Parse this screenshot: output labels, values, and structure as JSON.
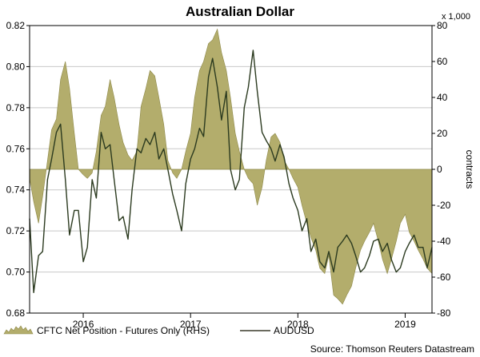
{
  "chart_data": {
    "type": "line",
    "title": "Australian Dollar",
    "source": "Source: Thomson Reuters Datastream",
    "x_ticks": [
      "2016",
      "2017",
      "2018",
      "2019"
    ],
    "x_range": [
      "2015-07",
      "2019-04"
    ],
    "left_axis": {
      "ylim": [
        0.68,
        0.82
      ],
      "ticks": [
        "0.82",
        "0.80",
        "0.78",
        "0.76",
        "0.74",
        "0.72",
        "0.70",
        "0.68"
      ]
    },
    "right_axis": {
      "unit_label": "x 1,000",
      "label": "contracts",
      "ylim": [
        -80,
        80
      ],
      "ticks": [
        "80",
        "60",
        "40",
        "20",
        "0",
        "-20",
        "-40",
        "-60",
        "-80"
      ]
    },
    "colors": {
      "area_fill": "#b3ad6c",
      "area_edge": "#8c8746",
      "line": "#2b3a1f",
      "grid": "#c8c8c8",
      "legend_line": "#3a3a2a"
    },
    "series": [
      {
        "name": "CFTC Net Position - Futures Only (RHS)",
        "type": "area",
        "axis": "right",
        "x": [
          "2015-07",
          "2015-07-15",
          "2015-08",
          "2015-08-15",
          "2015-09",
          "2015-09-15",
          "2015-10",
          "2015-10-15",
          "2015-11",
          "2015-11-15",
          "2015-12",
          "2015-12-15",
          "2016-01",
          "2016-01-15",
          "2016-02",
          "2016-02-15",
          "2016-03",
          "2016-03-15",
          "2016-04",
          "2016-04-15",
          "2016-05",
          "2016-05-15",
          "2016-06",
          "2016-06-15",
          "2016-07",
          "2016-07-15",
          "2016-08",
          "2016-08-15",
          "2016-09",
          "2016-09-15",
          "2016-10",
          "2016-10-15",
          "2016-11",
          "2016-11-15",
          "2016-12",
          "2016-12-15",
          "2017-01",
          "2017-01-15",
          "2017-02",
          "2017-02-15",
          "2017-03",
          "2017-03-15",
          "2017-04",
          "2017-04-15",
          "2017-05",
          "2017-05-15",
          "2017-06",
          "2017-06-15",
          "2017-07",
          "2017-07-15",
          "2017-08",
          "2017-08-15",
          "2017-09",
          "2017-09-15",
          "2017-10",
          "2017-10-15",
          "2017-11",
          "2017-11-15",
          "2017-12",
          "2017-12-15",
          "2018-01",
          "2018-01-15",
          "2018-02",
          "2018-02-15",
          "2018-03",
          "2018-03-15",
          "2018-04",
          "2018-04-15",
          "2018-05",
          "2018-05-15",
          "2018-06",
          "2018-06-15",
          "2018-07",
          "2018-07-15",
          "2018-08",
          "2018-08-15",
          "2018-09",
          "2018-09-15",
          "2018-10",
          "2018-10-15",
          "2018-11",
          "2018-11-15",
          "2018-12",
          "2018-12-15",
          "2019-01",
          "2019-01-15",
          "2019-02",
          "2019-02-15",
          "2019-03",
          "2019-03-15",
          "2019-04"
        ],
        "values": [
          -5,
          -18,
          -30,
          -15,
          5,
          22,
          28,
          50,
          60,
          45,
          20,
          0,
          -3,
          -5,
          -2,
          10,
          30,
          35,
          50,
          40,
          25,
          15,
          8,
          5,
          10,
          35,
          45,
          55,
          52,
          40,
          25,
          5,
          -2,
          -5,
          0,
          10,
          20,
          40,
          55,
          60,
          70,
          72,
          78,
          65,
          55,
          40,
          20,
          10,
          0,
          -5,
          -8,
          -20,
          -10,
          5,
          18,
          20,
          15,
          5,
          0,
          -5,
          -10,
          -20,
          -30,
          -38,
          -45,
          -55,
          -58,
          -48,
          -70,
          -72,
          -75,
          -70,
          -65,
          -55,
          -45,
          -40,
          -35,
          -30,
          -40,
          -50,
          -58,
          -50,
          -40,
          -30,
          -25,
          -35,
          -40,
          -45,
          -50,
          -55,
          -58
        ]
      },
      {
        "name": "AUDUSD",
        "type": "line",
        "axis": "left",
        "x": [
          "2015-07",
          "2015-07-15",
          "2015-08",
          "2015-08-15",
          "2015-09",
          "2015-09-15",
          "2015-10",
          "2015-10-15",
          "2015-11",
          "2015-11-15",
          "2015-12",
          "2015-12-15",
          "2016-01",
          "2016-01-15",
          "2016-02",
          "2016-02-15",
          "2016-03",
          "2016-03-15",
          "2016-04",
          "2016-04-15",
          "2016-05",
          "2016-05-15",
          "2016-06",
          "2016-06-15",
          "2016-07",
          "2016-07-15",
          "2016-08",
          "2016-08-15",
          "2016-09",
          "2016-09-15",
          "2016-10",
          "2016-10-15",
          "2016-11",
          "2016-11-15",
          "2016-12",
          "2016-12-15",
          "2017-01",
          "2017-01-15",
          "2017-02",
          "2017-02-15",
          "2017-03",
          "2017-03-15",
          "2017-04",
          "2017-04-15",
          "2017-05",
          "2017-05-15",
          "2017-06",
          "2017-06-15",
          "2017-07",
          "2017-07-15",
          "2017-08",
          "2017-08-15",
          "2017-09",
          "2017-09-15",
          "2017-10",
          "2017-10-15",
          "2017-11",
          "2017-11-15",
          "2017-12",
          "2017-12-15",
          "2018-01",
          "2018-01-15",
          "2018-02",
          "2018-02-15",
          "2018-03",
          "2018-03-15",
          "2018-04",
          "2018-04-15",
          "2018-05",
          "2018-05-15",
          "2018-06",
          "2018-06-15",
          "2018-07",
          "2018-07-15",
          "2018-08",
          "2018-08-15",
          "2018-09",
          "2018-09-15",
          "2018-10",
          "2018-10-15",
          "2018-11",
          "2018-11-15",
          "2018-12",
          "2018-12-15",
          "2019-01",
          "2019-01-15",
          "2019-02",
          "2019-02-15",
          "2019-03",
          "2019-03-15",
          "2019-04"
        ],
        "values": [
          0.726,
          0.69,
          0.708,
          0.71,
          0.745,
          0.755,
          0.768,
          0.772,
          0.745,
          0.718,
          0.73,
          0.73,
          0.705,
          0.712,
          0.745,
          0.736,
          0.768,
          0.76,
          0.762,
          0.745,
          0.725,
          0.727,
          0.716,
          0.74,
          0.76,
          0.758,
          0.765,
          0.762,
          0.768,
          0.755,
          0.76,
          0.75,
          0.738,
          0.73,
          0.72,
          0.743,
          0.755,
          0.76,
          0.77,
          0.766,
          0.795,
          0.804,
          0.79,
          0.774,
          0.788,
          0.75,
          0.74,
          0.745,
          0.78,
          0.79,
          0.808,
          0.788,
          0.768,
          0.764,
          0.76,
          0.754,
          0.762,
          0.756,
          0.743,
          0.736,
          0.73,
          0.72,
          0.726,
          0.71,
          0.716,
          0.705,
          0.702,
          0.71,
          0.7,
          0.712,
          0.715,
          0.718,
          0.714,
          0.708,
          0.7,
          0.702,
          0.708,
          0.715,
          0.716,
          0.71,
          0.714,
          0.706,
          0.7,
          0.702,
          0.71,
          0.714,
          0.718,
          0.712,
          0.712,
          0.702,
          0.712
        ]
      }
    ],
    "legend": [
      {
        "label": "CFTC Net Position - Futures Only (RHS)",
        "swatch": "area"
      },
      {
        "label": "AUDUSD",
        "swatch": "line"
      }
    ]
  }
}
